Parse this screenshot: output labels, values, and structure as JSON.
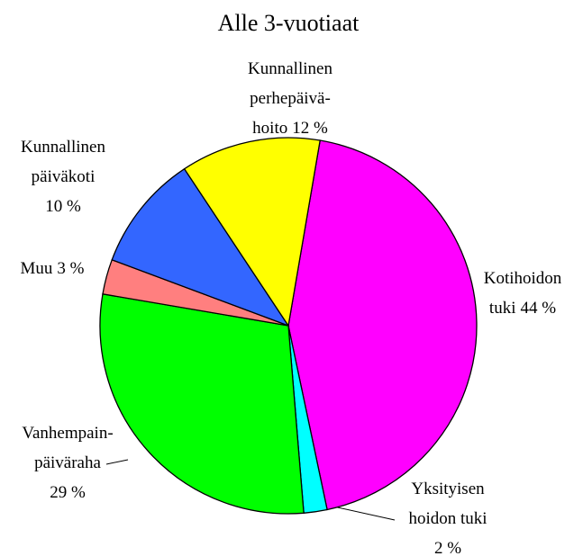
{
  "chart_data": {
    "type": "pie",
    "title": "Alle 3-vuotiaat",
    "categories": [
      [
        "Kotihoidon",
        "tuki"
      ],
      [
        "Yksityisen",
        "hoidon tuki"
      ],
      [
        "Vanhempain-",
        "päiväraha"
      ],
      [
        "Muu"
      ],
      [
        "Kunnallinen",
        "päiväkoti"
      ],
      [
        "Kunnallinen",
        "perhepäivä-",
        "hoito"
      ]
    ],
    "values": [
      44,
      2,
      29,
      3,
      10,
      12
    ],
    "value_labels": [
      "44 %",
      "2 %",
      "29 %",
      "3 %",
      "10 %",
      "12 %"
    ],
    "colors": [
      "#ff00ff",
      "#00ffff",
      "#00ff00",
      "#ff7f7f",
      "#3366ff",
      "#ffff00"
    ]
  }
}
